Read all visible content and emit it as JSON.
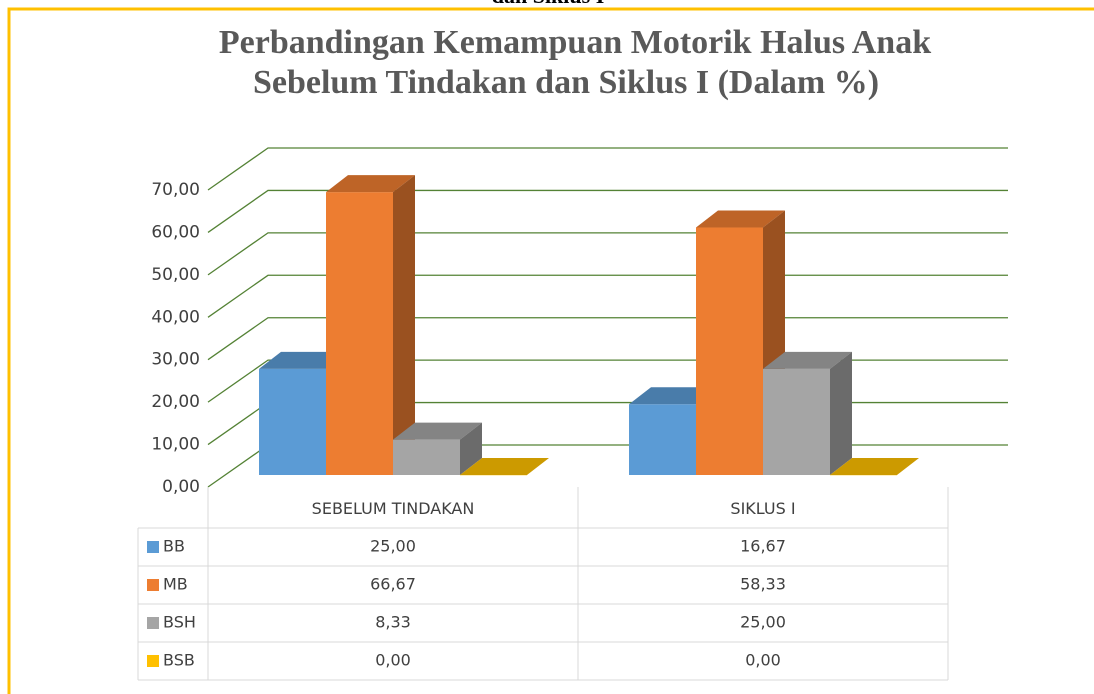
{
  "caption": "dan Siklus I",
  "chart_data": {
    "type": "bar3d",
    "title": [
      "Perbandingan Kemampuan Motorik Halus Anak",
      "Sebelum Tindakan dan Siklus I (Dalam %)"
    ],
    "categories": [
      "SEBELUM TINDAKAN",
      "SIKLUS I"
    ],
    "series": [
      {
        "name": "BB",
        "color": "#5b9bd5",
        "values": [
          25,
          16.67
        ],
        "value_labels": [
          "25,00",
          "16,67"
        ]
      },
      {
        "name": "MB",
        "color": "#ed7d31",
        "values": [
          66.67,
          58.33
        ],
        "value_labels": [
          "66,67",
          "58,33"
        ]
      },
      {
        "name": "BSH",
        "color": "#a5a5a5",
        "values": [
          8.33,
          25
        ],
        "value_labels": [
          "8,33",
          "25,00"
        ]
      },
      {
        "name": "BSB",
        "color": "#ffc000",
        "values": [
          0,
          0
        ],
        "value_labels": [
          "0,00",
          "0,00"
        ]
      }
    ],
    "ylim": [
      0,
      70
    ],
    "yticks": [
      {
        "value": 0,
        "label": "0,00"
      },
      {
        "value": 10,
        "label": "10,00"
      },
      {
        "value": 20,
        "label": "20,00"
      },
      {
        "value": 30,
        "label": "30,00"
      },
      {
        "value": 40,
        "label": "40,00"
      },
      {
        "value": 50,
        "label": "50,00"
      },
      {
        "value": 60,
        "label": "60,00"
      },
      {
        "value": 70,
        "label": "70,00"
      }
    ],
    "grid": true,
    "grid_color": "#548235",
    "data_table": true
  }
}
